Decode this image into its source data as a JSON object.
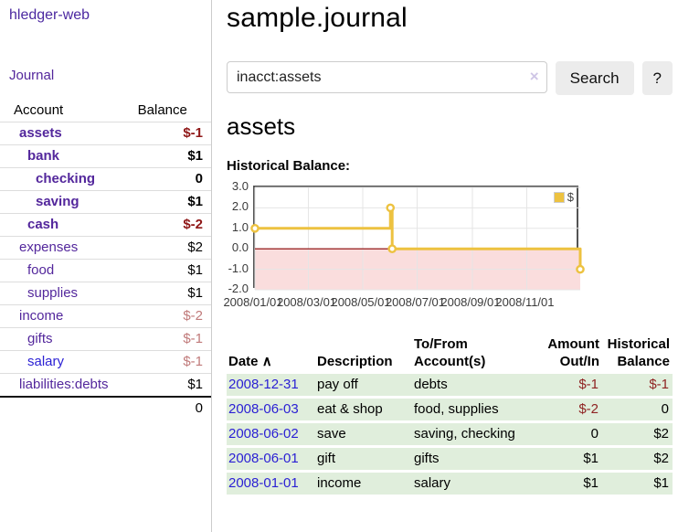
{
  "sidebar": {
    "app_title": "hledger-web",
    "journal_link": "Journal",
    "accounts_table": {
      "headers": {
        "account": "Account",
        "balance": "Balance"
      },
      "rows": [
        {
          "name": "assets",
          "balance": "$-1",
          "level": 1,
          "emph": true,
          "neg": "strong"
        },
        {
          "name": "bank",
          "balance": "$1",
          "level": 2,
          "emph": true
        },
        {
          "name": "checking",
          "balance": "0",
          "level": 3,
          "emph": true
        },
        {
          "name": "saving",
          "balance": "$1",
          "level": 3,
          "emph": true
        },
        {
          "name": "cash",
          "balance": "$-2",
          "level": 2,
          "emph": true,
          "neg": "strong"
        },
        {
          "name": "expenses",
          "balance": "$2",
          "level": 1
        },
        {
          "name": "food",
          "balance": "$1",
          "level": 2
        },
        {
          "name": "supplies",
          "balance": "$1",
          "level": 2
        },
        {
          "name": "income",
          "balance": "$-2",
          "level": 1,
          "neg": "weak"
        },
        {
          "name": "gifts",
          "balance": "$-1",
          "level": 2,
          "neg": "weak"
        },
        {
          "name": "salary",
          "balance": "$-1",
          "level": 2,
          "neg": "weak",
          "blue": true
        },
        {
          "name": "liabilities:debts",
          "balance": "$1",
          "level": 1
        }
      ],
      "total": "0"
    }
  },
  "main": {
    "title": "sample.journal",
    "search": {
      "value": "inacct:assets",
      "clear_icon": "×",
      "search_label": "Search",
      "help_label": "?"
    },
    "account_heading": "assets",
    "chart_label": "Historical Balance:"
  },
  "chart_data": {
    "type": "line",
    "title": "Historical Balance of assets",
    "step": true,
    "legend": [
      {
        "label": "$",
        "color": "#edc240"
      }
    ],
    "xlim": [
      "2008/01/01",
      "2008/12/31"
    ],
    "ylim": [
      -2.0,
      3.0
    ],
    "x_ticks": [
      "2008/01/01",
      "2008/03/01",
      "2008/05/01",
      "2008/07/01",
      "2008/09/01",
      "2008/11/01"
    ],
    "y_ticks": [
      3.0,
      2.0,
      1.0,
      0.0,
      -1.0,
      -2.0
    ],
    "points": [
      {
        "date": "2008/01/01",
        "value": 1
      },
      {
        "date": "2008/06/01",
        "value": 2
      },
      {
        "date": "2008/06/03",
        "value": 0
      },
      {
        "date": "2008/12/31",
        "value": -1
      }
    ],
    "line_color": "#edc240",
    "marker_fill": "#ffffff",
    "grid_color": "#e5e5e5",
    "border_color": "#545454",
    "zero_line_color": "#8b0000",
    "negative_region_color": "#fadddd"
  },
  "register": {
    "headers": {
      "date": "Date",
      "sort_icon": "∧",
      "description": "Description",
      "accounts": "To/From Account(s)",
      "amount": "Amount Out/In",
      "historical": "Historical Balance"
    },
    "rows": [
      {
        "date": "2008-12-31",
        "description": "pay off",
        "accounts": "debts",
        "amount": "$-1",
        "balance": "$-1",
        "amount_neg": true,
        "balance_neg": true
      },
      {
        "date": "2008-06-03",
        "description": "eat & shop",
        "accounts": "food, supplies",
        "amount": "$-2",
        "balance": "0",
        "amount_neg": true
      },
      {
        "date": "2008-06-02",
        "description": "save",
        "accounts": "saving, checking",
        "amount": "0",
        "balance": "$2"
      },
      {
        "date": "2008-06-01",
        "description": "gift",
        "accounts": "gifts",
        "amount": "$1",
        "balance": "$2"
      },
      {
        "date": "2008-01-01",
        "description": "income",
        "accounts": "salary",
        "amount": "$1",
        "balance": "$1"
      }
    ]
  }
}
